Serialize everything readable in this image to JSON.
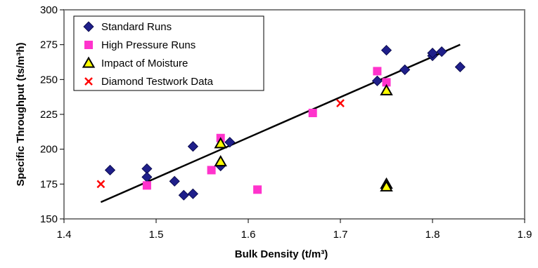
{
  "chart_data": {
    "type": "scatter",
    "xlabel": "Bulk Density (t/m³)",
    "ylabel": "Specific Throughput (ts/m³h)",
    "xlim": [
      1.4,
      1.9
    ],
    "ylim": [
      150,
      300
    ],
    "x_ticks": [
      1.4,
      1.5,
      1.6,
      1.7,
      1.8,
      1.9
    ],
    "y_ticks": [
      150,
      175,
      200,
      225,
      250,
      275,
      300
    ],
    "x_tick_labels": [
      "1.4",
      "1.5",
      "1.6",
      "1.7",
      "1.8",
      "1.9"
    ],
    "y_tick_labels": [
      "150",
      "175",
      "200",
      "225",
      "250",
      "275",
      "300"
    ],
    "grid": false,
    "legend_position": "top-left",
    "series": [
      {
        "name": "Standard Runs",
        "marker": "diamond",
        "color": "#1F1F8A",
        "points": [
          [
            1.45,
            185
          ],
          [
            1.49,
            186
          ],
          [
            1.49,
            180
          ],
          [
            1.52,
            177
          ],
          [
            1.53,
            167
          ],
          [
            1.54,
            168
          ],
          [
            1.54,
            202
          ],
          [
            1.57,
            188
          ],
          [
            1.58,
            205
          ],
          [
            1.74,
            249
          ],
          [
            1.75,
            271
          ],
          [
            1.77,
            257
          ],
          [
            1.8,
            267
          ],
          [
            1.8,
            269
          ],
          [
            1.81,
            270
          ],
          [
            1.83,
            259
          ]
        ]
      },
      {
        "name": "High Pressure Runs",
        "marker": "square",
        "color": "#FF33CC",
        "points": [
          [
            1.49,
            174
          ],
          [
            1.56,
            185
          ],
          [
            1.57,
            208
          ],
          [
            1.61,
            171
          ],
          [
            1.67,
            226
          ],
          [
            1.74,
            256
          ],
          [
            1.75,
            248
          ]
        ]
      },
      {
        "name": "Impact of Moisture",
        "marker": "triangle",
        "color": "#FFFF00",
        "points": [
          [
            1.57,
            204
          ],
          [
            1.57,
            191
          ],
          [
            1.75,
            242
          ],
          [
            1.75,
            175
          ],
          [
            1.75,
            173
          ]
        ]
      },
      {
        "name": "Diamond Testwork Data",
        "marker": "cross",
        "color": "#FF0000",
        "points": [
          [
            1.44,
            175
          ],
          [
            1.7,
            233
          ]
        ]
      }
    ],
    "trendline": {
      "type": "linear",
      "color": "#000000",
      "points": [
        [
          1.44,
          162
        ],
        [
          1.83,
          275
        ]
      ]
    }
  }
}
